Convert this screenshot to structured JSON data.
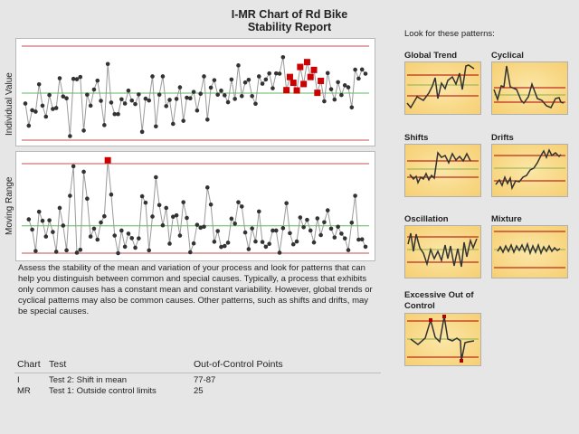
{
  "title": {
    "line1": "I-MR Chart of Rd Bike",
    "line2": "Stability Report"
  },
  "colors": {
    "data_line": "#9a9a9a",
    "point": "#333333",
    "flagged": "#cc0000",
    "center_line": "#5cb85c",
    "control_limit": "#d98c8c"
  },
  "chart_data": [
    {
      "type": "line",
      "ylabel": "Individual Value",
      "grid": false,
      "center_line": 0,
      "ucl": 3,
      "lcl": -3,
      "flagged_points": [
        77,
        78,
        79,
        80,
        81,
        82,
        83,
        84,
        85,
        86,
        87
      ],
      "values": [
        -0.66,
        -2.08,
        -1.09,
        -1.18,
        0.56,
        -0.8,
        -1.5,
        -0.12,
        -1.01,
        -0.95,
        0.95,
        -0.21,
        -0.33,
        -2.74,
        0.91,
        0.89,
        1.03,
        -2.39,
        -0.1,
        -0.8,
        0.23,
        0.8,
        -0.49,
        -2.04,
        1.86,
        -0.6,
        -1.34,
        -1.34,
        -0.39,
        -0.66,
        0.16,
        -0.47,
        -0.7,
        -0.08,
        -2.47,
        -0.35,
        -0.47,
        1.07,
        -2.12,
        -0.1,
        1.07,
        -0.83,
        -0.43,
        -1.96,
        -0.37,
        0.37,
        -1.77,
        -0.29,
        -0.33,
        0.08,
        -1.11,
        -0.04,
        1.07,
        -1.69,
        0.35,
        0.83,
        -0.1,
        0.16,
        -0.14,
        -0.58,
        0.87,
        -0.37,
        1.77,
        -0.19,
        0.68,
        0.85,
        -0.19,
        -0.68,
        1.07,
        0.6,
        0.87,
        1.26,
        0.31,
        1.26,
        1.24,
        2.29,
        0.19,
        1.03,
        0.66,
        0.17,
        1.67,
        0.58,
        1.98,
        1.03,
        1.48,
        0.02,
        0.78,
        -0.52,
        1.28,
        0.25,
        -0.41,
        0.7,
        -0.12,
        0.5,
        0.37,
        -0.91,
        1.5,
        0.93,
        1.51,
        1.24
      ]
    },
    {
      "type": "line",
      "ylabel": "Moving Range",
      "grid": false,
      "center_line": 1.15,
      "ucl": 3.76,
      "lcl": 0,
      "flagged_points": [
        25
      ],
      "values": [
        1.42,
        0.99,
        0.09,
        1.74,
        1.36,
        0.7,
        1.38,
        0.89,
        0.06,
        1.9,
        1.16,
        0.12,
        2.41,
        3.65,
        0.02,
        0.14,
        3.42,
        2.29,
        0.7,
        1.03,
        0.57,
        1.29,
        1.55,
        3.9,
        2.46,
        0.74,
        0,
        0.95,
        0.27,
        0.82,
        0.63,
        0.23,
        0.62,
        2.39,
        2.12,
        0.12,
        1.54,
        3.19,
        2.02,
        1.17,
        1.9,
        0.4,
        1.53,
        1.59,
        0.74,
        2.14,
        1.48,
        0.04,
        0.41,
        1.19,
        1.07,
        1.11,
        2.76,
        2.04,
        0.48,
        0.93,
        0.26,
        0.3,
        0.44,
        1.45,
        1.24,
        2.14,
        1.96,
        0.87,
        0.17,
        1.04,
        0.49,
        1.75,
        0.47,
        0.27,
        0.39,
        0.95,
        0.95,
        0.02,
        1.05,
        2.1,
        0.84,
        0.37,
        0.49,
        1.5,
        1.09,
        1.4,
        0.95,
        0.45,
        1.46,
        0.76,
        1.3,
        1.8,
        1.03,
        0.66,
        1.11,
        0.82,
        0.62,
        0.13,
        1.28,
        2.41,
        0.57,
        0.58,
        0.27
      ]
    }
  ],
  "description": "Assess the stability of the mean and variation of your process and look for patterns that can help you distinguish between common and special causes. Typically, a process that exhibits only common causes has a constant mean and constant variability. However, global trends or cyclical patterns may also be common causes. Other patterns, such as shifts and drifts, may be special causes.",
  "table": {
    "headers": [
      "Chart",
      "Test",
      "Out-of-Control Points"
    ],
    "rows": [
      [
        "I",
        "Test 2: Shift in mean",
        "77-87"
      ],
      [
        "MR",
        "Test 1: Outside control limits",
        "25"
      ]
    ]
  },
  "patterns": {
    "heading": "Look for these patterns:",
    "items": [
      "Global Trend",
      "Cyclical",
      "Shifts",
      "Drifts",
      "Oscillation",
      "Mixture",
      "Excessive Out of Control"
    ]
  }
}
